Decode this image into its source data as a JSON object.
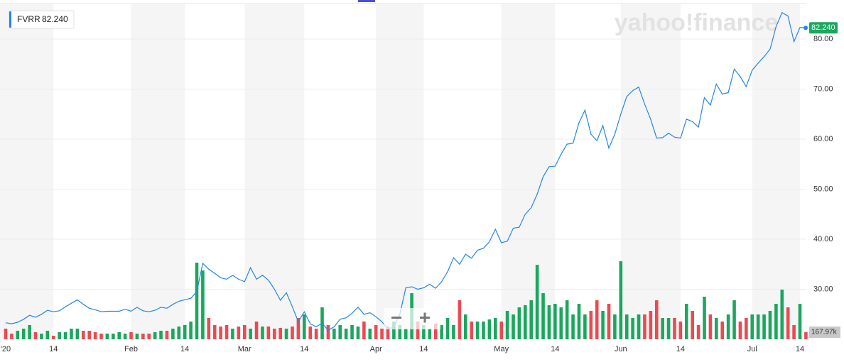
{
  "chart_data": {
    "type": "line",
    "watermark": "yahoo!finance",
    "categories": [
      "'20",
      null,
      null,
      null,
      null,
      null,
      null,
      null,
      "14",
      null,
      null,
      null,
      null,
      null,
      null,
      null,
      null,
      null,
      null,
      null,
      null,
      "Feb",
      null,
      null,
      null,
      null,
      null,
      null,
      null,
      null,
      "14",
      null,
      null,
      null,
      null,
      null,
      null,
      null,
      null,
      null,
      "Mar",
      null,
      null,
      null,
      null,
      null,
      null,
      null,
      null,
      null,
      "14",
      null,
      null,
      null,
      null,
      null,
      null,
      null,
      null,
      null,
      null,
      null,
      "Apr",
      null,
      null,
      null,
      null,
      null,
      null,
      null,
      "14",
      null,
      null,
      null,
      null,
      null,
      null,
      null,
      null,
      null,
      null,
      null,
      null,
      "May",
      null,
      null,
      null,
      null,
      null,
      null,
      null,
      null,
      "14",
      null,
      null,
      null,
      null,
      null,
      null,
      null,
      null,
      null,
      null,
      "Jun",
      null,
      null,
      null,
      null,
      null,
      null,
      null,
      null,
      null,
      "14",
      null,
      null,
      null,
      null,
      null,
      null,
      null,
      null,
      null,
      null,
      null,
      "Jul",
      null,
      null,
      null,
      null,
      null,
      null,
      null,
      "14",
      null
    ],
    "series": [
      {
        "name": "FVRR",
        "color": "#2186e8",
        "last_value_label": "82.240",
        "last_color": "#1aa75e",
        "values": [
          23.3,
          23.1,
          23.4,
          24.0,
          24.8,
          24.4,
          25.0,
          25.8,
          25.5,
          25.7,
          26.5,
          27.2,
          27.9,
          27.0,
          26.2,
          25.9,
          25.5,
          25.6,
          25.6,
          25.6,
          26.0,
          25.6,
          26.4,
          25.7,
          25.5,
          25.8,
          26.4,
          26.2,
          27.0,
          27.6,
          27.9,
          28.2,
          29.5,
          35.2,
          34.0,
          33.2,
          32.3,
          32.0,
          32.8,
          32.0,
          31.5,
          34.3,
          32.0,
          32.8,
          31.8,
          30.0,
          27.8,
          29.3,
          26.5,
          23.5,
          25.5,
          23.1,
          22.5,
          23.2,
          21.8,
          22.5,
          24.0,
          24.3,
          25.2,
          26.4,
          25.0,
          25.3,
          24.5,
          23.5,
          22.0,
          22.5,
          25.0,
          30.3,
          30.5,
          30.0,
          30.3,
          31.0,
          30.2,
          31.5,
          33.5,
          36.3,
          35.0,
          37.0,
          36.2,
          37.8,
          38.2,
          39.5,
          42.0,
          39.3,
          39.6,
          42.2,
          42.4,
          45.0,
          46.3,
          49.0,
          52.5,
          54.5,
          54.6,
          57.0,
          59.0,
          59.2,
          63.3,
          65.8,
          61.0,
          59.7,
          62.7,
          58.2,
          61.0,
          65.0,
          68.5,
          69.7,
          70.4,
          67.0,
          64.0,
          60.2,
          60.3,
          61.2,
          60.4,
          60.2,
          64.0,
          63.5,
          62.4,
          68.3,
          66.8,
          71.0,
          69.0,
          69.3,
          74.0,
          72.5,
          70.5,
          73.8,
          75.2,
          76.5,
          78.0,
          82.5,
          85.3,
          84.6,
          79.5,
          82.3,
          82.24
        ]
      },
      {
        "type": "bar",
        "axis": "y2",
        "up_color": "#1aa75e",
        "down_color": "#ea4a50",
        "last_value_label": "167.97k",
        "values": [
          252,
          134,
          202,
          252,
          336,
          168,
          134,
          202,
          84,
          168,
          168,
          252,
          252,
          202,
          202,
          168,
          134,
          134,
          134,
          168,
          134,
          168,
          134,
          134,
          134,
          168,
          202,
          202,
          252,
          302,
          336,
          420,
          1814,
          1630,
          504,
          336,
          302,
          336,
          252,
          302,
          336,
          252,
          420,
          302,
          302,
          252,
          269,
          252,
          302,
          504,
          588,
          302,
          252,
          756,
          336,
          252,
          336,
          252,
          336,
          302,
          420,
          252,
          336,
          252,
          302,
          420,
          336,
          252,
          1092,
          420,
          336,
          252,
          370,
          336,
          504,
          336,
          924,
          588,
          420,
          420,
          420,
          470,
          504,
          420,
          672,
          588,
          756,
          806,
          924,
          1764,
          1092,
          806,
          840,
          756,
          924,
          588,
          840,
          588,
          672,
          924,
          672,
          840,
          588,
          1848,
          588,
          504,
          588,
          588,
          672,
          924,
          504,
          504,
          504,
          420,
          840,
          672,
          336,
          1008,
          588,
          504,
          420,
          588,
          924,
          420,
          504,
          588,
          588,
          588,
          672,
          840,
          1176,
          756,
          336,
          840,
          167.97
        ]
      }
    ],
    "ylim": [
      20,
      87.1
    ],
    "yticks": [
      {
        "value": 30,
        "label": "30.00"
      },
      {
        "value": 40,
        "label": "40.00"
      },
      {
        "value": 50,
        "label": "50.00"
      },
      {
        "value": 60,
        "label": "60.00"
      },
      {
        "value": 70,
        "label": "70.00"
      },
      {
        "value": 80,
        "label": "80.00"
      }
    ],
    "y2lim": [
      0,
      7950
    ],
    "grid": true
  }
}
